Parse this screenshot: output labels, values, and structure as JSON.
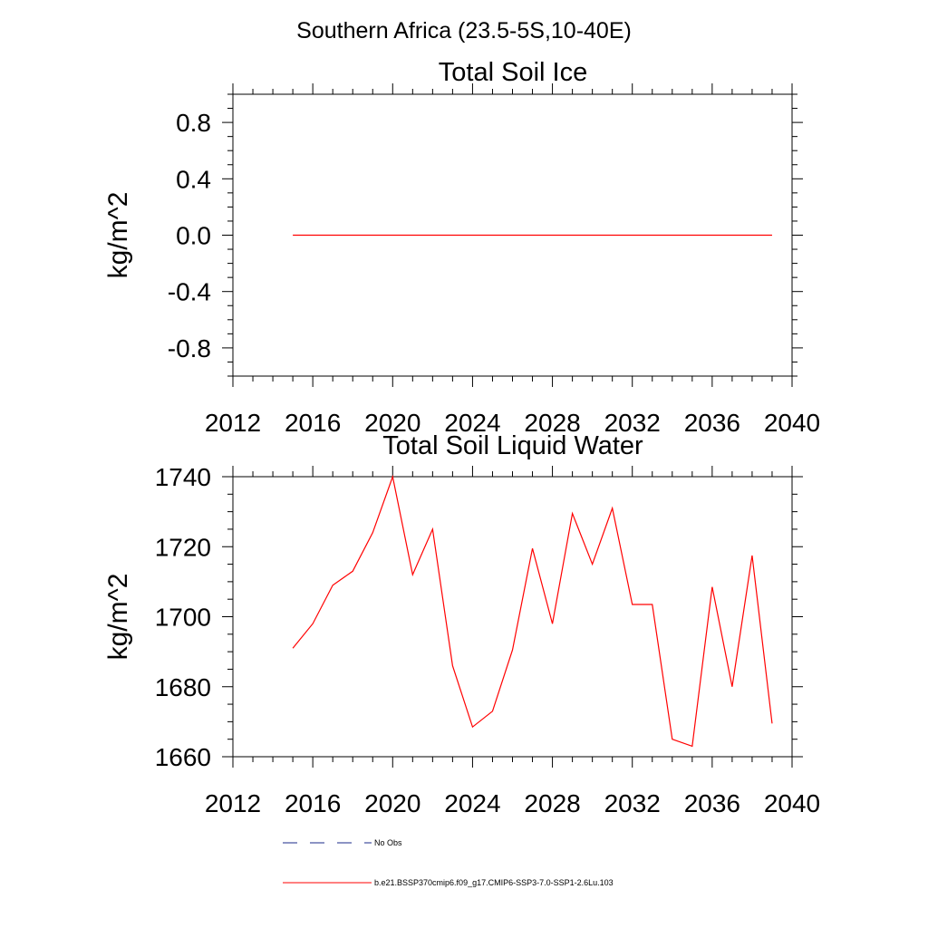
{
  "page_title": "Southern Africa (23.5-5S,10-40E)",
  "chart_data": [
    {
      "type": "line",
      "title": "Total Soil Ice",
      "xlabel": "",
      "ylabel": "kg/m^2",
      "xlim": [
        2012,
        2040
      ],
      "ylim": [
        -1.0,
        1.0
      ],
      "x_ticks": [
        2012,
        2016,
        2020,
        2024,
        2028,
        2032,
        2036,
        2040
      ],
      "y_ticks": [
        -0.8,
        -0.4,
        0.0,
        0.4,
        0.8
      ],
      "y_tick_labels": [
        "-0.8",
        "-0.4",
        "0.0",
        "0.4",
        "0.8"
      ],
      "grid": false,
      "series": [
        {
          "color": "#ff0000",
          "x": [
            2015,
            2016,
            2017,
            2018,
            2019,
            2020,
            2021,
            2022,
            2023,
            2024,
            2025,
            2026,
            2027,
            2028,
            2029,
            2030,
            2031,
            2032,
            2033,
            2034,
            2035,
            2036,
            2037,
            2038,
            2039
          ],
          "values": [
            0,
            0,
            0,
            0,
            0,
            0,
            0,
            0,
            0,
            0,
            0,
            0,
            0,
            0,
            0,
            0,
            0,
            0,
            0,
            0,
            0,
            0,
            0,
            0,
            0
          ]
        }
      ]
    },
    {
      "type": "line",
      "title": "Total Soil Liquid Water",
      "xlabel": "",
      "ylabel": "kg/m^2",
      "xlim": [
        2012,
        2040
      ],
      "ylim": [
        1660,
        1740
      ],
      "x_ticks": [
        2012,
        2016,
        2020,
        2024,
        2028,
        2032,
        2036,
        2040
      ],
      "y_ticks": [
        1660,
        1680,
        1700,
        1720,
        1740
      ],
      "y_tick_labels": [
        "1660",
        "1680",
        "1700",
        "1720",
        "1740"
      ],
      "grid": false,
      "series": [
        {
          "color": "#ff0000",
          "x": [
            2015,
            2016,
            2017,
            2018,
            2019,
            2020,
            2021,
            2022,
            2023,
            2024,
            2025,
            2026,
            2027,
            2028,
            2029,
            2030,
            2031,
            2032,
            2033,
            2034,
            2035,
            2036,
            2037,
            2038,
            2039
          ],
          "values": [
            1691,
            1698,
            1709,
            1713,
            1724,
            1740,
            1712,
            1725,
            1686,
            1668.5,
            1673,
            1690.5,
            1719.5,
            1698,
            1729.5,
            1715,
            1731,
            1703.5,
            1703.5,
            1665,
            1663,
            1708.5,
            1680,
            1717.5,
            1669.5
          ]
        }
      ]
    }
  ],
  "legend": {
    "placement": "bottom-left",
    "items": [
      {
        "label": "No Obs",
        "color": "#1a2a8a",
        "style": "dashed"
      },
      {
        "label": "b.e21.BSSP370cmip6.f09_g17.CMIP6-SSP3-7.0-SSP1-2.6Lu.103",
        "color": "#ff0000",
        "style": "solid"
      }
    ]
  }
}
